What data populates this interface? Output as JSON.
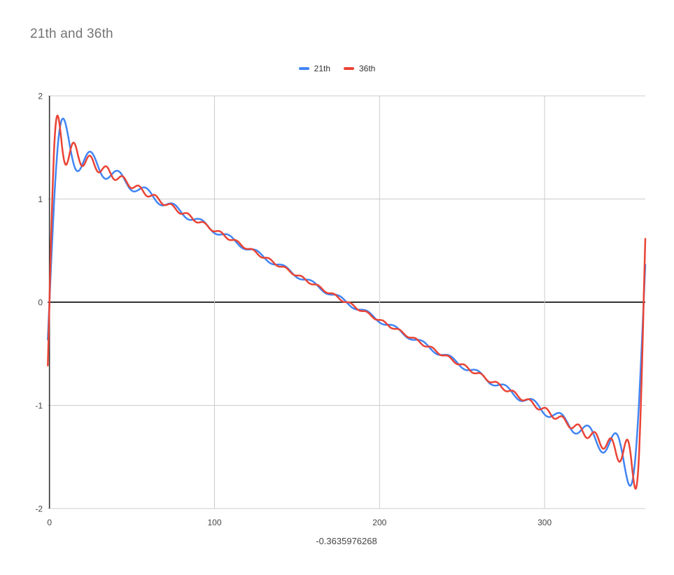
{
  "chart_data": {
    "type": "line",
    "title": "21th and 36th",
    "xlabel": "-0.3635976268",
    "ylabel": "",
    "x_range": [
      -1,
      361
    ],
    "y_range": [
      -2,
      2
    ],
    "x_ticks": [
      0,
      100,
      200,
      300
    ],
    "y_ticks": [
      2,
      1,
      0,
      -1,
      -2
    ],
    "grid": true,
    "legend_position": "top-center",
    "colors": {
      "grid": "#cccccc",
      "axis": "#333333",
      "tick_label": "#444444",
      "title_text": "#757575",
      "background": "#ffffff"
    },
    "generator": {
      "description": "Fourier partial sums of a sawtooth wave: y(x) = sum_{n=1}^{N} sin(n * x * pi/180) / n, x in degrees; curves show Gibbs overshoot to about +1.8 near x=0 and -1.8 near x=360, descending roughly linearly from +1.57 to -1.57 in between; endpoints y(-1) = -0.3635976268 (N=21) / -0.6140 (N=36) and mirrored positive values at x=361",
      "x_start": -1,
      "x_end": 361,
      "x_step": 1
    },
    "series": [
      {
        "name": "21th",
        "harmonics": 21,
        "color": "#4285F4"
      },
      {
        "name": "36th",
        "harmonics": 36,
        "color": "#EA4335"
      }
    ]
  }
}
